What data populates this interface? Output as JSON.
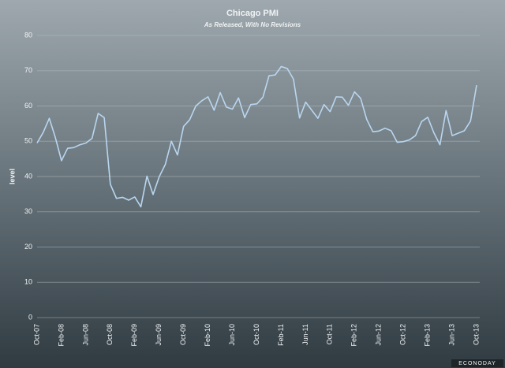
{
  "chart_data": {
    "type": "line",
    "title": "Chicago PMI",
    "subtitle": "As Released, With No Revisions",
    "y_label": "level",
    "logo": "ECONODAY",
    "categories": [
      "Oct-07",
      null,
      null,
      null,
      "Feb-08",
      null,
      null,
      null,
      "Jun-08",
      null,
      null,
      null,
      "Oct-08",
      null,
      null,
      null,
      "Feb-09",
      null,
      null,
      null,
      "Jun-09",
      null,
      null,
      null,
      "Oct-09",
      null,
      null,
      null,
      "Feb-10",
      null,
      null,
      null,
      "Jun-10",
      null,
      null,
      null,
      "Oct-10",
      null,
      null,
      null,
      "Feb-11",
      null,
      null,
      null,
      "Jun-11",
      null,
      null,
      null,
      "Oct-11",
      null,
      null,
      null,
      "Feb-12",
      null,
      null,
      null,
      "Jun-12",
      null,
      null,
      null,
      "Oct-12",
      null,
      null,
      null,
      "Feb-13",
      null,
      null,
      null,
      "Jun-13",
      null,
      null,
      null,
      "Oct-13"
    ],
    "values": [
      49.5,
      52.5,
      56.5,
      51,
      44.5,
      48,
      48.2,
      49,
      49.5,
      50.8,
      57.9,
      56.7,
      37.8,
      33.8,
      34.1,
      33.3,
      34.2,
      31.4,
      40.1,
      34.9,
      39.9,
      43.4,
      50,
      46.1,
      54.2,
      56.1,
      60,
      61.5,
      62.6,
      58.8,
      63.8,
      59.7,
      59.1,
      62.3,
      56.7,
      60.4,
      60.6,
      62.5,
      68.6,
      68.8,
      71.2,
      70.6,
      67.6,
      56.6,
      61.1,
      58.8,
      56.5,
      60.4,
      58.4,
      62.6,
      62.5,
      60.2,
      64,
      62.2,
      56.2,
      52.7,
      52.9,
      53.7,
      53,
      49.7,
      49.9,
      50.4,
      51.6,
      55.6,
      56.8,
      52.4,
      49,
      58.7,
      51.6,
      52.3,
      53,
      55.7,
      65.9
    ],
    "color": "#b9d6ef",
    "ylim": [
      0,
      80
    ],
    "yticks": [
      0,
      10,
      20,
      30,
      40,
      50,
      60,
      70,
      80
    ],
    "grid": true
  }
}
